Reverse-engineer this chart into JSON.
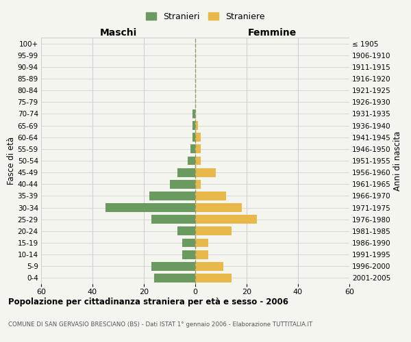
{
  "age_groups": [
    "0-4",
    "5-9",
    "10-14",
    "15-19",
    "20-24",
    "25-29",
    "30-34",
    "35-39",
    "40-44",
    "45-49",
    "50-54",
    "55-59",
    "60-64",
    "65-69",
    "70-74",
    "75-79",
    "80-84",
    "85-89",
    "90-94",
    "95-99",
    "100+"
  ],
  "birth_years": [
    "2001-2005",
    "1996-2000",
    "1991-1995",
    "1986-1990",
    "1981-1985",
    "1976-1980",
    "1971-1975",
    "1966-1970",
    "1961-1965",
    "1956-1960",
    "1951-1955",
    "1946-1950",
    "1941-1945",
    "1936-1940",
    "1931-1935",
    "1926-1930",
    "1921-1925",
    "1916-1920",
    "1911-1915",
    "1906-1910",
    "≤ 1905"
  ],
  "males": [
    16,
    17,
    5,
    5,
    7,
    17,
    35,
    18,
    10,
    7,
    3,
    2,
    1,
    1,
    1,
    0,
    0,
    0,
    0,
    0,
    0
  ],
  "females": [
    14,
    11,
    5,
    5,
    14,
    24,
    18,
    12,
    2,
    8,
    2,
    2,
    2,
    1,
    0,
    0,
    0,
    0,
    0,
    0,
    0
  ],
  "male_color": "#6a9a5f",
  "female_color": "#e8b84b",
  "background_color": "#f5f5f0",
  "grid_color": "#cccccc",
  "centerline_color": "#999966",
  "title": "Popolazione per cittadinanza straniera per età e sesso - 2006",
  "subtitle": "COMUNE DI SAN GERVASIO BRESCIANO (BS) - Dati ISTAT 1° gennaio 2006 - Elaborazione TUTTITALIA.IT",
  "xlabel_left": "Maschi",
  "xlabel_right": "Femmine",
  "ylabel_left": "Fasce di età",
  "ylabel_right": "Anni di nascita",
  "xlim": 60,
  "legend_stranieri": "Stranieri",
  "legend_straniere": "Straniere"
}
